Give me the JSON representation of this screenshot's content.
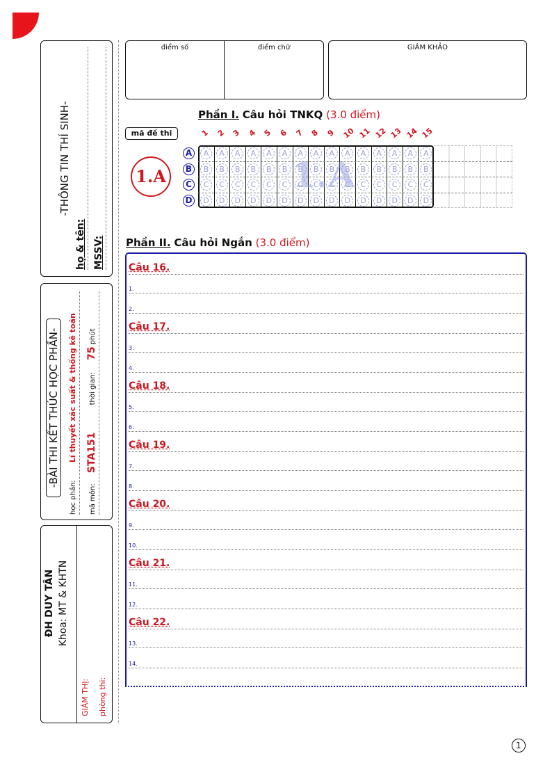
{
  "student_info": {
    "title": "-THÔNG TIN THÍ SINH-",
    "name_label": "họ & tên:",
    "id_label": "MSSV:"
  },
  "exam_info": {
    "title": "-BÀI THI KẾT THÚC HỌC PHẦN-",
    "course_label": "học phần:",
    "course_value": "Lí thuyết xác suất & thống kê toán",
    "code_label": "mã môn:",
    "code_value": "STA151",
    "time_label": "thời gian:",
    "time_value": "75",
    "time_unit": "phút"
  },
  "school": {
    "name": "ĐH DUY TÂN",
    "faculty": "Khoa: MT & KHTN",
    "proctor_label": "GIÁM THỊ:",
    "room_label": "phòng thi:"
  },
  "scores": {
    "numeric_label": "điểm số",
    "text_label": "điểm chữ",
    "examiner_label": "GIÁM KHẢO"
  },
  "part1": {
    "heading": "Phần I.",
    "title": "Câu hỏi TNKQ",
    "points": "(3.0 điểm)",
    "code_label": "mã đề thi",
    "code_value": "1.A",
    "watermark": "1.A",
    "options": [
      "A",
      "B",
      "C",
      "D"
    ],
    "questions": [
      "1",
      "2",
      "3",
      "4",
      "5",
      "6",
      "7",
      "8",
      "9",
      "10",
      "11",
      "12",
      "13",
      "14",
      "15"
    ]
  },
  "part2": {
    "heading": "Phần II.",
    "title": "Câu hỏi Ngắn",
    "points": "(3.0 điểm)",
    "questions": [
      {
        "label": "Câu 16.",
        "lines": [
          "1.",
          "2."
        ]
      },
      {
        "label": "Câu 17.",
        "lines": [
          "3.",
          "4."
        ]
      },
      {
        "label": "Câu 18.",
        "lines": [
          "5.",
          "6."
        ]
      },
      {
        "label": "Câu 19.",
        "lines": [
          "7.",
          "8."
        ]
      },
      {
        "label": "Câu 20.",
        "lines": [
          "9.",
          "10."
        ]
      },
      {
        "label": "Câu 21.",
        "lines": [
          "11.",
          "12."
        ]
      },
      {
        "label": "Câu 22.",
        "lines": [
          "13.",
          "14."
        ]
      }
    ]
  },
  "page_number": "1",
  "colors": {
    "accent_red": "#d0161e",
    "accent_blue": "#1a1aa8"
  }
}
